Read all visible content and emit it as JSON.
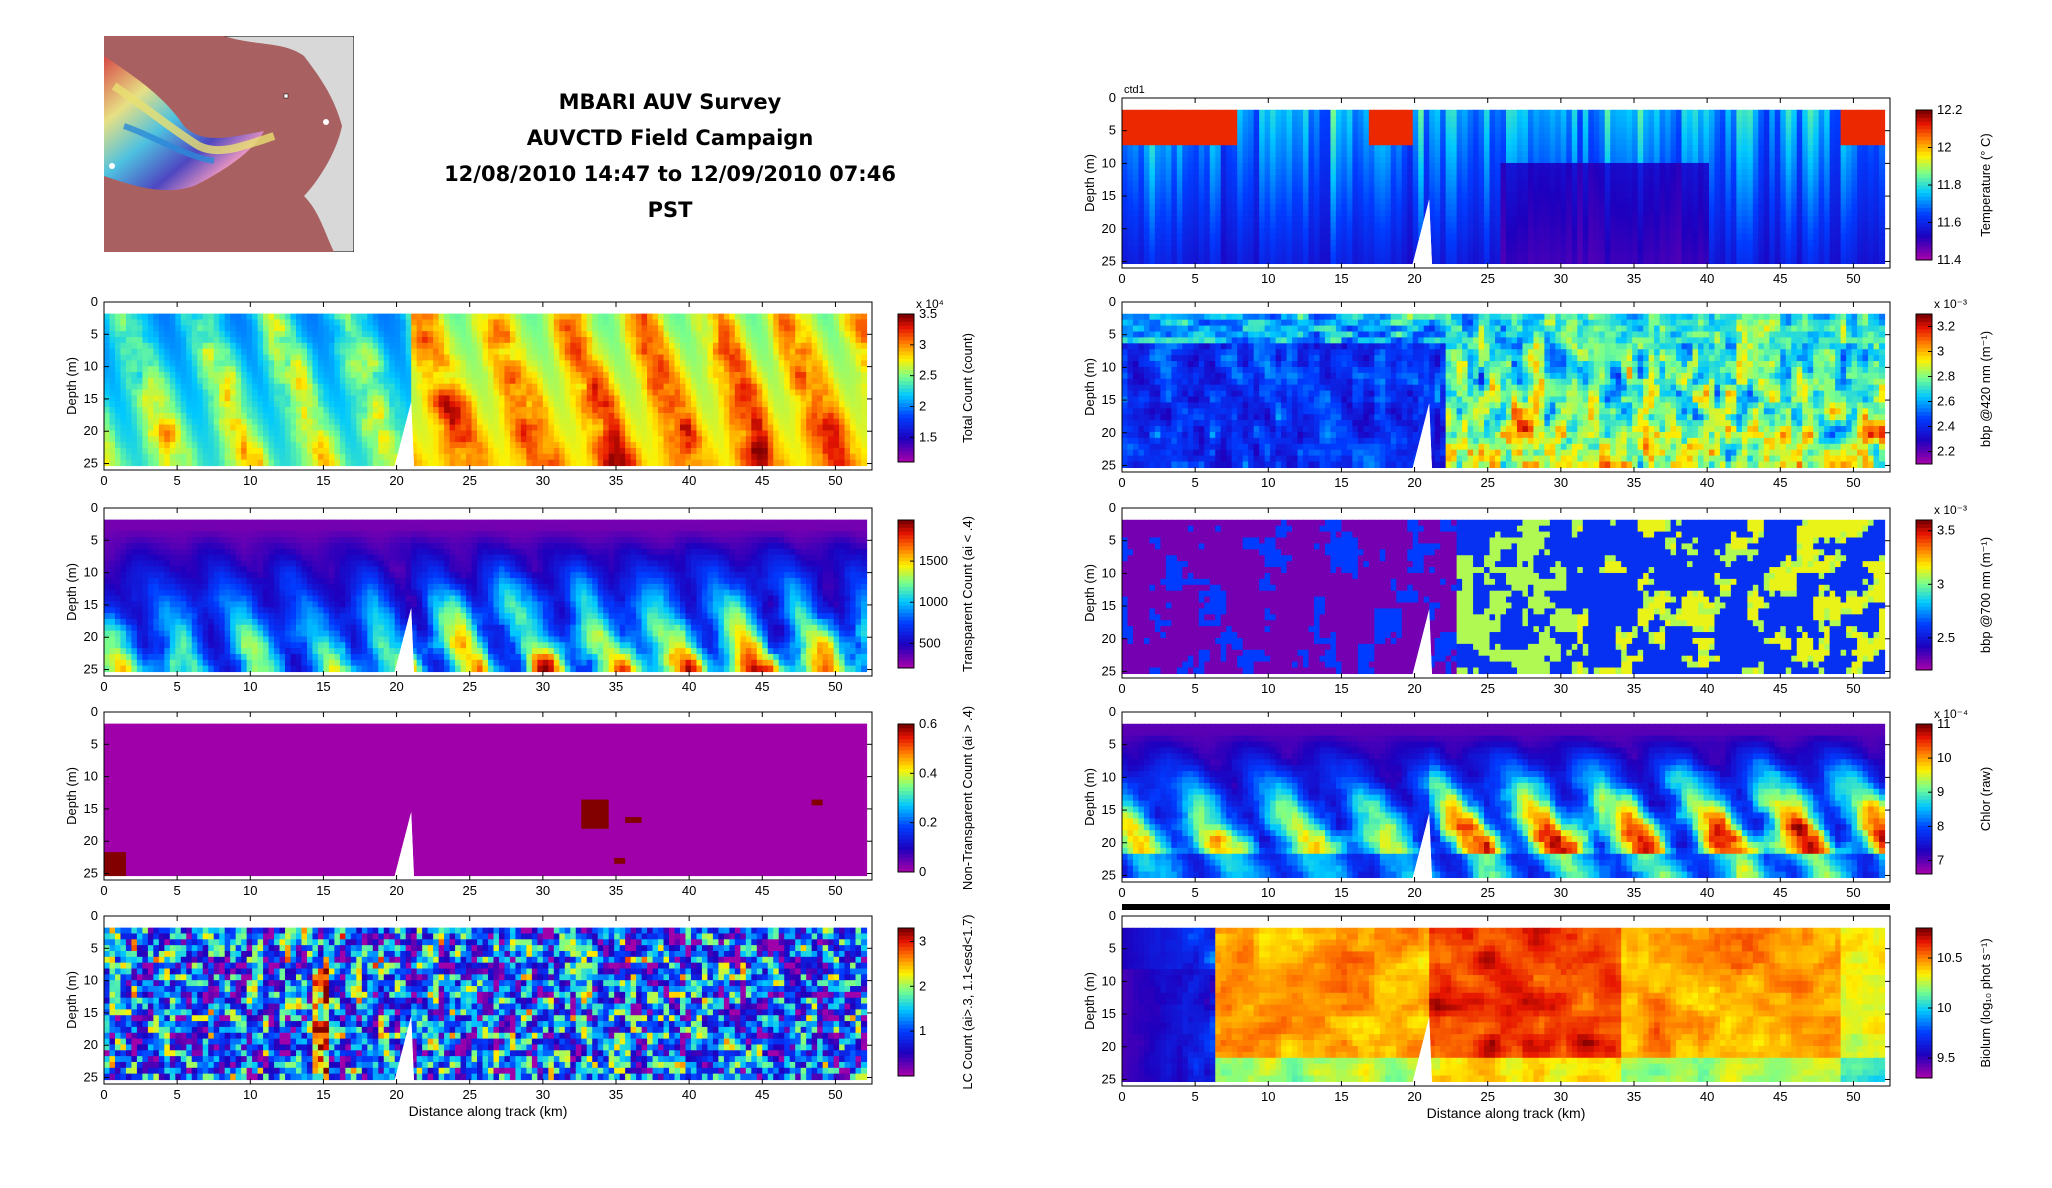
{
  "title": {
    "line1": "MBARI AUV Survey",
    "line2": "AUVCTD Field Campaign",
    "line3": "12/08/2010 14:47 to 12/09/2010 07:46 PST"
  },
  "xlabel": "Distance along track (km)",
  "ylabel": "Depth (m)",
  "top_right_label": "ctd1",
  "colors": {
    "gap": "#ffffff",
    "frame": "#000000"
  },
  "chart_data": [
    {
      "type": "heatmap",
      "ylabel": "Depth (m)",
      "xlabel": "",
      "cbar_label": "Total Count (count)",
      "cbar_exponent": "x 10⁴",
      "xlim": [
        0,
        52.5
      ],
      "ylim": [
        0,
        26
      ],
      "clim": [
        1.1,
        3.5
      ],
      "xticks": [
        0,
        5,
        10,
        15,
        20,
        25,
        30,
        35,
        40,
        45,
        50
      ],
      "yticks": [
        0,
        5,
        10,
        15,
        20,
        25
      ],
      "cticks": [
        "1.5",
        "2",
        "2.5",
        "3",
        "3.5"
      ],
      "cticks_vals": [
        1.5,
        2,
        2.5,
        3,
        3.5
      ],
      "pattern": "total"
    },
    {
      "type": "heatmap",
      "ylabel": "Depth (m)",
      "xlabel": "",
      "cbar_label": "Transparent Count (ai < .4)",
      "cbar_exponent": "",
      "xlim": [
        0,
        52.5
      ],
      "ylim": [
        0,
        26
      ],
      "clim": [
        200,
        2000
      ],
      "xticks": [
        0,
        5,
        10,
        15,
        20,
        25,
        30,
        35,
        40,
        45,
        50
      ],
      "yticks": [
        0,
        5,
        10,
        15,
        20,
        25
      ],
      "cticks": [
        "500",
        "1000",
        "1500"
      ],
      "cticks_vals": [
        500,
        1000,
        1500
      ],
      "pattern": "transparent"
    },
    {
      "type": "heatmap",
      "ylabel": "Depth (m)",
      "xlabel": "",
      "cbar_label": "Non-Transparent Count (ai > .4)",
      "cbar_exponent": "",
      "xlim": [
        0,
        52.5
      ],
      "ylim": [
        0,
        26
      ],
      "clim": [
        0,
        0.6
      ],
      "xticks": [
        0,
        5,
        10,
        15,
        20,
        25,
        30,
        35,
        40,
        45,
        50
      ],
      "yticks": [
        0,
        5,
        10,
        15,
        20,
        25
      ],
      "cticks": [
        "0",
        "0.2",
        "0.4",
        "0.6"
      ],
      "cticks_vals": [
        0,
        0.2,
        0.4,
        0.6
      ],
      "pattern": "nontransparent"
    },
    {
      "type": "heatmap",
      "ylabel": "Depth (m)",
      "xlabel": "Distance along track (km)",
      "cbar_label": "LC Count (ai>.3, 1.1<esd<1.7)",
      "cbar_exponent": "",
      "xlim": [
        0,
        52.5
      ],
      "ylim": [
        0,
        26
      ],
      "clim": [
        0,
        3.3
      ],
      "xticks": [
        0,
        5,
        10,
        15,
        20,
        25,
        30,
        35,
        40,
        45,
        50
      ],
      "yticks": [
        0,
        5,
        10,
        15,
        20,
        25
      ],
      "cticks": [
        "1",
        "2",
        "3"
      ],
      "cticks_vals": [
        1,
        2,
        3
      ],
      "pattern": "lc"
    },
    {
      "type": "heatmap",
      "ylabel": "Depth (m)",
      "xlabel": "",
      "cbar_label": "Temperature (° C)",
      "cbar_exponent": "",
      "xlim": [
        0,
        52.5
      ],
      "ylim": [
        0,
        26
      ],
      "clim": [
        11.4,
        12.2
      ],
      "xticks": [
        0,
        5,
        10,
        15,
        20,
        25,
        30,
        35,
        40,
        45,
        50
      ],
      "yticks": [
        0,
        5,
        10,
        15,
        20,
        25
      ],
      "cticks": [
        "11.4",
        "11.6",
        "11.8",
        "12",
        "12.2"
      ],
      "cticks_vals": [
        11.4,
        11.6,
        11.8,
        12,
        12.2
      ],
      "pattern": "temperature"
    },
    {
      "type": "heatmap",
      "ylabel": "Depth (m)",
      "xlabel": "",
      "cbar_label": "bbp @420 nm (m⁻¹)",
      "cbar_exponent": "x 10⁻³",
      "xlim": [
        0,
        52.5
      ],
      "ylim": [
        0,
        26
      ],
      "clim": [
        2.1,
        3.3
      ],
      "xticks": [
        0,
        5,
        10,
        15,
        20,
        25,
        30,
        35,
        40,
        45,
        50
      ],
      "yticks": [
        0,
        5,
        10,
        15,
        20,
        25
      ],
      "cticks": [
        "2.2",
        "2.4",
        "2.6",
        "2.8",
        "3",
        "3.2"
      ],
      "cticks_vals": [
        2.2,
        2.4,
        2.6,
        2.8,
        3,
        3.2
      ],
      "pattern": "bbp420"
    },
    {
      "type": "heatmap",
      "ylabel": "Depth (m)",
      "xlabel": "",
      "cbar_label": "bbp @700 nm (m⁻¹)",
      "cbar_exponent": "x 10⁻³",
      "xlim": [
        0,
        52.5
      ],
      "ylim": [
        0,
        26
      ],
      "clim": [
        2.2,
        3.6
      ],
      "xticks": [
        0,
        5,
        10,
        15,
        20,
        25,
        30,
        35,
        40,
        45,
        50
      ],
      "yticks": [
        0,
        5,
        10,
        15,
        20,
        25
      ],
      "cticks": [
        "2.5",
        "3",
        "3.5"
      ],
      "cticks_vals": [
        2.5,
        3,
        3.5
      ],
      "pattern": "bbp700"
    },
    {
      "type": "heatmap",
      "ylabel": "Depth (m)",
      "xlabel": "",
      "cbar_label": "Chlor (raw)",
      "cbar_exponent": "x 10⁻⁴",
      "xlim": [
        0,
        52.5
      ],
      "ylim": [
        0,
        26
      ],
      "clim": [
        6.6,
        11
      ],
      "xticks": [
        0,
        5,
        10,
        15,
        20,
        25,
        30,
        35,
        40,
        45,
        50
      ],
      "yticks": [
        0,
        5,
        10,
        15,
        20,
        25
      ],
      "cticks": [
        "7",
        "8",
        "9",
        "10",
        "11"
      ],
      "cticks_vals": [
        7,
        8,
        9,
        10,
        11
      ],
      "pattern": "chlor"
    },
    {
      "type": "heatmap",
      "ylabel": "Depth (m)",
      "xlabel": "Distance along track (km)",
      "cbar_label": "Biolum (log₁₀ phot s⁻¹)",
      "cbar_exponent": "",
      "xlim": [
        0,
        52.5
      ],
      "ylim": [
        0,
        26
      ],
      "clim": [
        9.3,
        10.8
      ],
      "xticks": [
        0,
        5,
        10,
        15,
        20,
        25,
        30,
        35,
        40,
        45,
        50
      ],
      "yticks": [
        0,
        5,
        10,
        15,
        20,
        25
      ],
      "cticks": [
        "9.5",
        "10",
        "10.5"
      ],
      "cticks_vals": [
        9.5,
        10,
        10.5
      ],
      "pattern": "biolum"
    }
  ]
}
